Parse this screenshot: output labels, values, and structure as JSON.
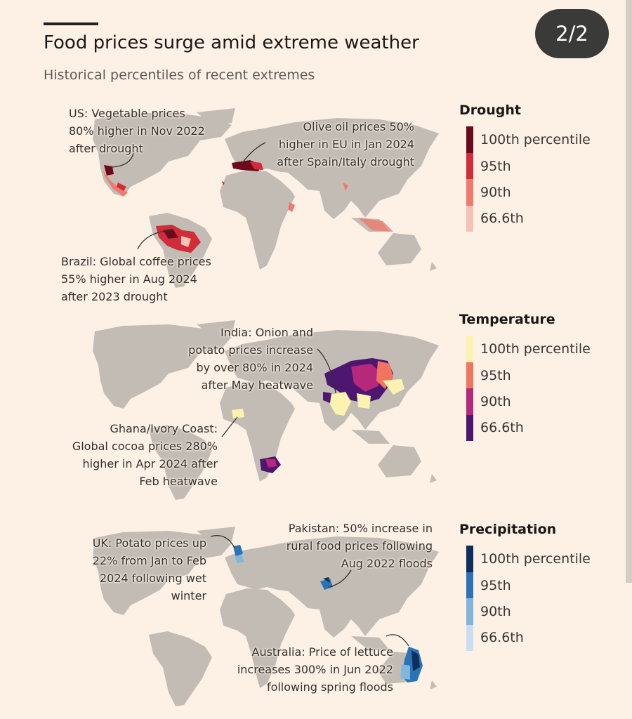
{
  "page": {
    "indicator": "2/2"
  },
  "header": {
    "title": "Food prices surge amid extreme weather",
    "subtitle": "Historical percentiles of recent extremes"
  },
  "panels": [
    {
      "name": "drought",
      "legend": {
        "title": "Drought",
        "levels": [
          "100th percentile",
          "95th",
          "90th",
          "66.6th"
        ],
        "colors": [
          "#6b0a1c",
          "#d12c3a",
          "#ee7b6d",
          "#f7c2b6"
        ]
      },
      "annotations": [
        {
          "lines": [
            "US: Vegetable prices",
            "80% higher in Nov 2022",
            "after drought"
          ]
        },
        {
          "lines": [
            "Olive oil prices 50%",
            "higher in EU in Jan 2024",
            "after Spain/Italy drought"
          ]
        },
        {
          "lines": [
            "Brazil: Global coffee prices",
            "55% higher in Aug 2024",
            "after 2023 drought"
          ]
        }
      ]
    },
    {
      "name": "temperature",
      "legend": {
        "title": "Temperature",
        "levels": [
          "100th percentile",
          "95th",
          "90th",
          "66.6th"
        ],
        "colors": [
          "#fdf3b0",
          "#f0745f",
          "#b5287b",
          "#4d1670"
        ]
      },
      "annotations": [
        {
          "lines": [
            "India: Onion and",
            "potato prices increase",
            "by over 80% in 2024",
            "after May heatwave"
          ]
        },
        {
          "lines": [
            "Ghana/Ivory Coast:",
            "Global cocoa prices 280%",
            "higher in Apr 2024 after",
            "Feb heatwave"
          ]
        }
      ]
    },
    {
      "name": "precipitation",
      "legend": {
        "title": "Precipitation",
        "levels": [
          "100th percentile",
          "95th",
          "90th",
          "66.6th"
        ],
        "colors": [
          "#0e2f5e",
          "#2a73b6",
          "#7fb6dc",
          "#c9dff0"
        ]
      },
      "annotations": [
        {
          "lines": [
            "UK: Potato prices up",
            "22% from Jan to Feb",
            "2024 following wet",
            "winter"
          ]
        },
        {
          "lines": [
            "Pakistan: 50% increase in",
            "rural food prices following",
            "Aug 2022 floods"
          ]
        },
        {
          "lines": [
            "Australia: Price of lettuce",
            "increases 300% in Jun 2022",
            "following spring floods"
          ]
        }
      ]
    }
  ]
}
